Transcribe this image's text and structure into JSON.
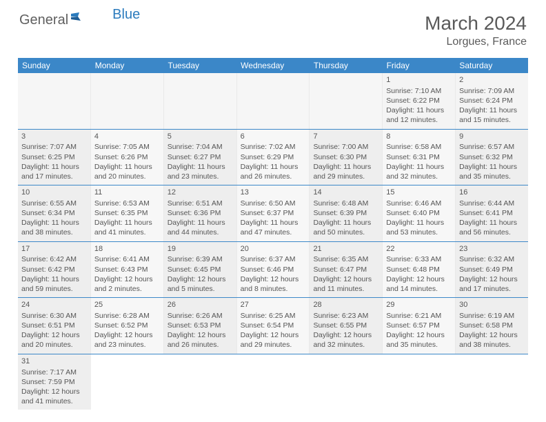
{
  "logo": {
    "general": "General",
    "blue": "Blue"
  },
  "title": "March 2024",
  "location": "Lorgues, France",
  "colors": {
    "header_bg": "#3b87c8",
    "header_text": "#ffffff",
    "row_border": "#3b87c8",
    "cell_odd_bg": "#eeeeee",
    "cell_even_bg": "#f7f7f7",
    "text": "#555555",
    "title_text": "#5a5a5a",
    "logo_gray": "#5f5f5f",
    "logo_blue": "#2b7bbd"
  },
  "days_of_week": [
    "Sunday",
    "Monday",
    "Tuesday",
    "Wednesday",
    "Thursday",
    "Friday",
    "Saturday"
  ],
  "weeks": [
    [
      null,
      null,
      null,
      null,
      null,
      {
        "n": "1",
        "sr": "Sunrise: 7:10 AM",
        "ss": "Sunset: 6:22 PM",
        "d1": "Daylight: 11 hours",
        "d2": "and 12 minutes."
      },
      {
        "n": "2",
        "sr": "Sunrise: 7:09 AM",
        "ss": "Sunset: 6:24 PM",
        "d1": "Daylight: 11 hours",
        "d2": "and 15 minutes."
      }
    ],
    [
      {
        "n": "3",
        "sr": "Sunrise: 7:07 AM",
        "ss": "Sunset: 6:25 PM",
        "d1": "Daylight: 11 hours",
        "d2": "and 17 minutes."
      },
      {
        "n": "4",
        "sr": "Sunrise: 7:05 AM",
        "ss": "Sunset: 6:26 PM",
        "d1": "Daylight: 11 hours",
        "d2": "and 20 minutes."
      },
      {
        "n": "5",
        "sr": "Sunrise: 7:04 AM",
        "ss": "Sunset: 6:27 PM",
        "d1": "Daylight: 11 hours",
        "d2": "and 23 minutes."
      },
      {
        "n": "6",
        "sr": "Sunrise: 7:02 AM",
        "ss": "Sunset: 6:29 PM",
        "d1": "Daylight: 11 hours",
        "d2": "and 26 minutes."
      },
      {
        "n": "7",
        "sr": "Sunrise: 7:00 AM",
        "ss": "Sunset: 6:30 PM",
        "d1": "Daylight: 11 hours",
        "d2": "and 29 minutes."
      },
      {
        "n": "8",
        "sr": "Sunrise: 6:58 AM",
        "ss": "Sunset: 6:31 PM",
        "d1": "Daylight: 11 hours",
        "d2": "and 32 minutes."
      },
      {
        "n": "9",
        "sr": "Sunrise: 6:57 AM",
        "ss": "Sunset: 6:32 PM",
        "d1": "Daylight: 11 hours",
        "d2": "and 35 minutes."
      }
    ],
    [
      {
        "n": "10",
        "sr": "Sunrise: 6:55 AM",
        "ss": "Sunset: 6:34 PM",
        "d1": "Daylight: 11 hours",
        "d2": "and 38 minutes."
      },
      {
        "n": "11",
        "sr": "Sunrise: 6:53 AM",
        "ss": "Sunset: 6:35 PM",
        "d1": "Daylight: 11 hours",
        "d2": "and 41 minutes."
      },
      {
        "n": "12",
        "sr": "Sunrise: 6:51 AM",
        "ss": "Sunset: 6:36 PM",
        "d1": "Daylight: 11 hours",
        "d2": "and 44 minutes."
      },
      {
        "n": "13",
        "sr": "Sunrise: 6:50 AM",
        "ss": "Sunset: 6:37 PM",
        "d1": "Daylight: 11 hours",
        "d2": "and 47 minutes."
      },
      {
        "n": "14",
        "sr": "Sunrise: 6:48 AM",
        "ss": "Sunset: 6:39 PM",
        "d1": "Daylight: 11 hours",
        "d2": "and 50 minutes."
      },
      {
        "n": "15",
        "sr": "Sunrise: 6:46 AM",
        "ss": "Sunset: 6:40 PM",
        "d1": "Daylight: 11 hours",
        "d2": "and 53 minutes."
      },
      {
        "n": "16",
        "sr": "Sunrise: 6:44 AM",
        "ss": "Sunset: 6:41 PM",
        "d1": "Daylight: 11 hours",
        "d2": "and 56 minutes."
      }
    ],
    [
      {
        "n": "17",
        "sr": "Sunrise: 6:42 AM",
        "ss": "Sunset: 6:42 PM",
        "d1": "Daylight: 11 hours",
        "d2": "and 59 minutes."
      },
      {
        "n": "18",
        "sr": "Sunrise: 6:41 AM",
        "ss": "Sunset: 6:43 PM",
        "d1": "Daylight: 12 hours",
        "d2": "and 2 minutes."
      },
      {
        "n": "19",
        "sr": "Sunrise: 6:39 AM",
        "ss": "Sunset: 6:45 PM",
        "d1": "Daylight: 12 hours",
        "d2": "and 5 minutes."
      },
      {
        "n": "20",
        "sr": "Sunrise: 6:37 AM",
        "ss": "Sunset: 6:46 PM",
        "d1": "Daylight: 12 hours",
        "d2": "and 8 minutes."
      },
      {
        "n": "21",
        "sr": "Sunrise: 6:35 AM",
        "ss": "Sunset: 6:47 PM",
        "d1": "Daylight: 12 hours",
        "d2": "and 11 minutes."
      },
      {
        "n": "22",
        "sr": "Sunrise: 6:33 AM",
        "ss": "Sunset: 6:48 PM",
        "d1": "Daylight: 12 hours",
        "d2": "and 14 minutes."
      },
      {
        "n": "23",
        "sr": "Sunrise: 6:32 AM",
        "ss": "Sunset: 6:49 PM",
        "d1": "Daylight: 12 hours",
        "d2": "and 17 minutes."
      }
    ],
    [
      {
        "n": "24",
        "sr": "Sunrise: 6:30 AM",
        "ss": "Sunset: 6:51 PM",
        "d1": "Daylight: 12 hours",
        "d2": "and 20 minutes."
      },
      {
        "n": "25",
        "sr": "Sunrise: 6:28 AM",
        "ss": "Sunset: 6:52 PM",
        "d1": "Daylight: 12 hours",
        "d2": "and 23 minutes."
      },
      {
        "n": "26",
        "sr": "Sunrise: 6:26 AM",
        "ss": "Sunset: 6:53 PM",
        "d1": "Daylight: 12 hours",
        "d2": "and 26 minutes."
      },
      {
        "n": "27",
        "sr": "Sunrise: 6:25 AM",
        "ss": "Sunset: 6:54 PM",
        "d1": "Daylight: 12 hours",
        "d2": "and 29 minutes."
      },
      {
        "n": "28",
        "sr": "Sunrise: 6:23 AM",
        "ss": "Sunset: 6:55 PM",
        "d1": "Daylight: 12 hours",
        "d2": "and 32 minutes."
      },
      {
        "n": "29",
        "sr": "Sunrise: 6:21 AM",
        "ss": "Sunset: 6:57 PM",
        "d1": "Daylight: 12 hours",
        "d2": "and 35 minutes."
      },
      {
        "n": "30",
        "sr": "Sunrise: 6:19 AM",
        "ss": "Sunset: 6:58 PM",
        "d1": "Daylight: 12 hours",
        "d2": "and 38 minutes."
      }
    ],
    [
      {
        "n": "31",
        "sr": "Sunrise: 7:17 AM",
        "ss": "Sunset: 7:59 PM",
        "d1": "Daylight: 12 hours",
        "d2": "and 41 minutes."
      },
      null,
      null,
      null,
      null,
      null,
      null
    ]
  ]
}
